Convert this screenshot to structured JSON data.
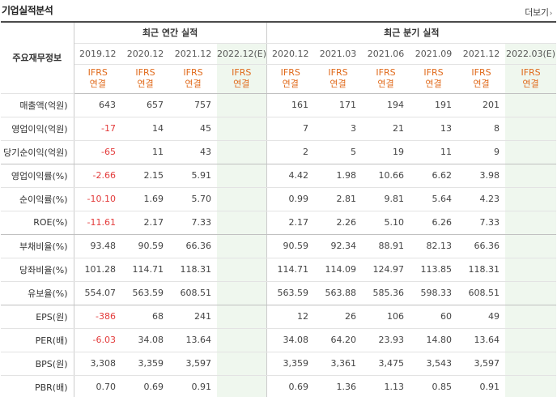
{
  "title": "기업실적분석",
  "more_label": "더보기",
  "header": {
    "row_label": "주요재무정보",
    "annual_group": "최근 연간 실적",
    "quarter_group": "최근 분기 실적",
    "annual_periods": [
      "2019.12",
      "2020.12",
      "2021.12",
      "2022.12(E)"
    ],
    "quarter_periods": [
      "2020.12",
      "2021.03",
      "2021.06",
      "2021.09",
      "2021.12",
      "2022.03(E)"
    ],
    "ifrs_top": "IFRS",
    "ifrs_bottom": "연결"
  },
  "rows": [
    {
      "label": "매출액(억원)",
      "annual": [
        "643",
        "657",
        "757",
        ""
      ],
      "quarter": [
        "161",
        "171",
        "194",
        "191",
        "201",
        ""
      ]
    },
    {
      "label": "영업이익(억원)",
      "annual": [
        "-17",
        "14",
        "45",
        ""
      ],
      "quarter": [
        "7",
        "3",
        "21",
        "13",
        "8",
        ""
      ]
    },
    {
      "label": "당기순이익(억원)",
      "annual": [
        "-65",
        "11",
        "43",
        ""
      ],
      "quarter": [
        "2",
        "5",
        "19",
        "11",
        "9",
        ""
      ]
    },
    {
      "label": "영업이익률(%)",
      "annual": [
        "-2.66",
        "2.15",
        "5.91",
        ""
      ],
      "quarter": [
        "4.42",
        "1.98",
        "10.66",
        "6.62",
        "3.98",
        ""
      ]
    },
    {
      "label": "순이익률(%)",
      "annual": [
        "-10.10",
        "1.69",
        "5.70",
        ""
      ],
      "quarter": [
        "0.99",
        "2.81",
        "9.81",
        "5.64",
        "4.23",
        ""
      ]
    },
    {
      "label": "ROE(%)",
      "annual": [
        "-11.61",
        "2.17",
        "7.33",
        ""
      ],
      "quarter": [
        "2.17",
        "2.26",
        "5.10",
        "6.26",
        "7.33",
        ""
      ]
    },
    {
      "label": "부채비율(%)",
      "annual": [
        "93.48",
        "90.59",
        "66.36",
        ""
      ],
      "quarter": [
        "90.59",
        "92.34",
        "88.91",
        "82.13",
        "66.36",
        ""
      ]
    },
    {
      "label": "당좌비율(%)",
      "annual": [
        "101.28",
        "114.71",
        "118.31",
        ""
      ],
      "quarter": [
        "114.71",
        "114.09",
        "124.97",
        "113.85",
        "118.31",
        ""
      ]
    },
    {
      "label": "유보율(%)",
      "annual": [
        "554.07",
        "563.59",
        "608.51",
        ""
      ],
      "quarter": [
        "563.59",
        "563.88",
        "585.36",
        "598.33",
        "608.51",
        ""
      ]
    },
    {
      "label": "EPS(원)",
      "annual": [
        "-386",
        "68",
        "241",
        ""
      ],
      "quarter": [
        "12",
        "26",
        "106",
        "60",
        "49",
        ""
      ]
    },
    {
      "label": "PER(배)",
      "annual": [
        "-6.03",
        "34.08",
        "13.64",
        ""
      ],
      "quarter": [
        "34.08",
        "64.20",
        "23.93",
        "14.80",
        "13.64",
        ""
      ]
    },
    {
      "label": "BPS(원)",
      "annual": [
        "3,308",
        "3,359",
        "3,597",
        ""
      ],
      "quarter": [
        "3,359",
        "3,361",
        "3,475",
        "3,543",
        "3,597",
        ""
      ]
    },
    {
      "label": "PBR(배)",
      "annual": [
        "0.70",
        "0.69",
        "0.91",
        ""
      ],
      "quarter": [
        "0.69",
        "1.36",
        "1.13",
        "0.85",
        "0.91",
        ""
      ]
    }
  ],
  "colors": {
    "negative": "#e33b3b",
    "ifrs": "#e06a1b",
    "estimate_bg": "#eff7ee",
    "estimate_text": "#3c7a3c"
  }
}
